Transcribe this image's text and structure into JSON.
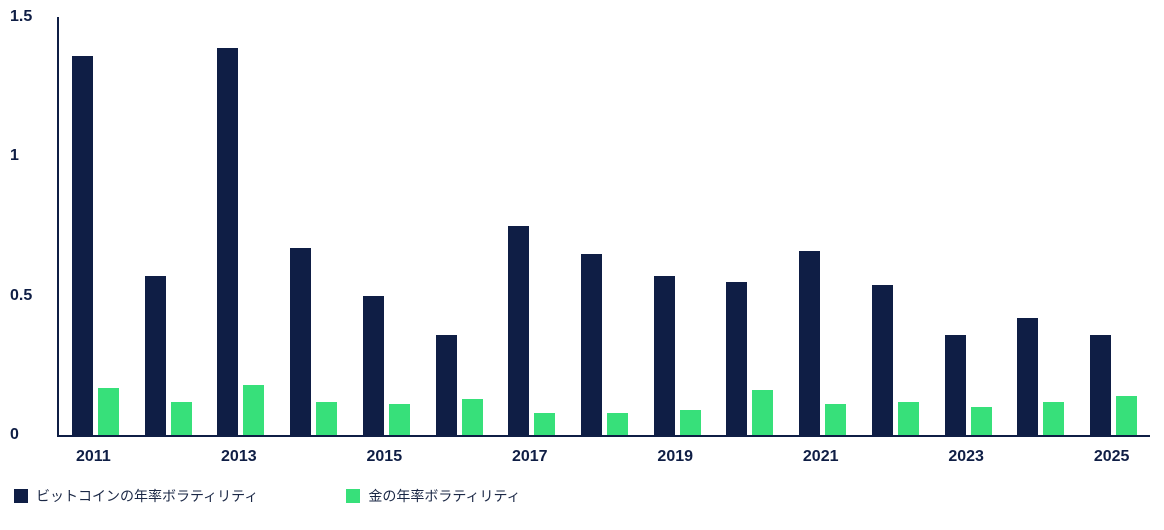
{
  "chart_data": {
    "type": "bar",
    "categories": [
      "2011",
      "2012",
      "2013",
      "2014",
      "2015",
      "2016",
      "2017",
      "2018",
      "2019",
      "2020",
      "2021",
      "2022",
      "2023",
      "2024",
      "2025"
    ],
    "series": [
      {
        "name": "ビットコインの年率ボラティリティ",
        "color": "#0f1e45",
        "values": [
          1.36,
          0.57,
          1.39,
          0.67,
          0.5,
          0.36,
          0.75,
          0.65,
          0.57,
          0.55,
          0.66,
          0.54,
          0.36,
          0.42,
          0.36
        ]
      },
      {
        "name": "金の年率ボラティリティ",
        "color": "#37e07a",
        "values": [
          0.17,
          0.12,
          0.18,
          0.12,
          0.11,
          0.13,
          0.08,
          0.08,
          0.09,
          0.16,
          0.11,
          0.12,
          0.1,
          0.12,
          0.14
        ]
      }
    ],
    "title": "",
    "xlabel": "",
    "ylabel": "",
    "ylim": [
      0,
      1.5
    ],
    "yticks": [
      "1.5",
      "1",
      "0.5",
      "0"
    ],
    "ytick_values": [
      1.5,
      1,
      0.5,
      0
    ],
    "x_tick_labels": [
      "2011",
      "2013",
      "2015",
      "2017",
      "2019",
      "2021",
      "2023",
      "2025"
    ],
    "x_tick_indices": [
      0,
      2,
      4,
      6,
      8,
      10,
      12,
      14
    ],
    "grid": false,
    "legend_position": "bottom-left",
    "axis_color": "#0f1e45",
    "text_color": "#0f1e45"
  }
}
